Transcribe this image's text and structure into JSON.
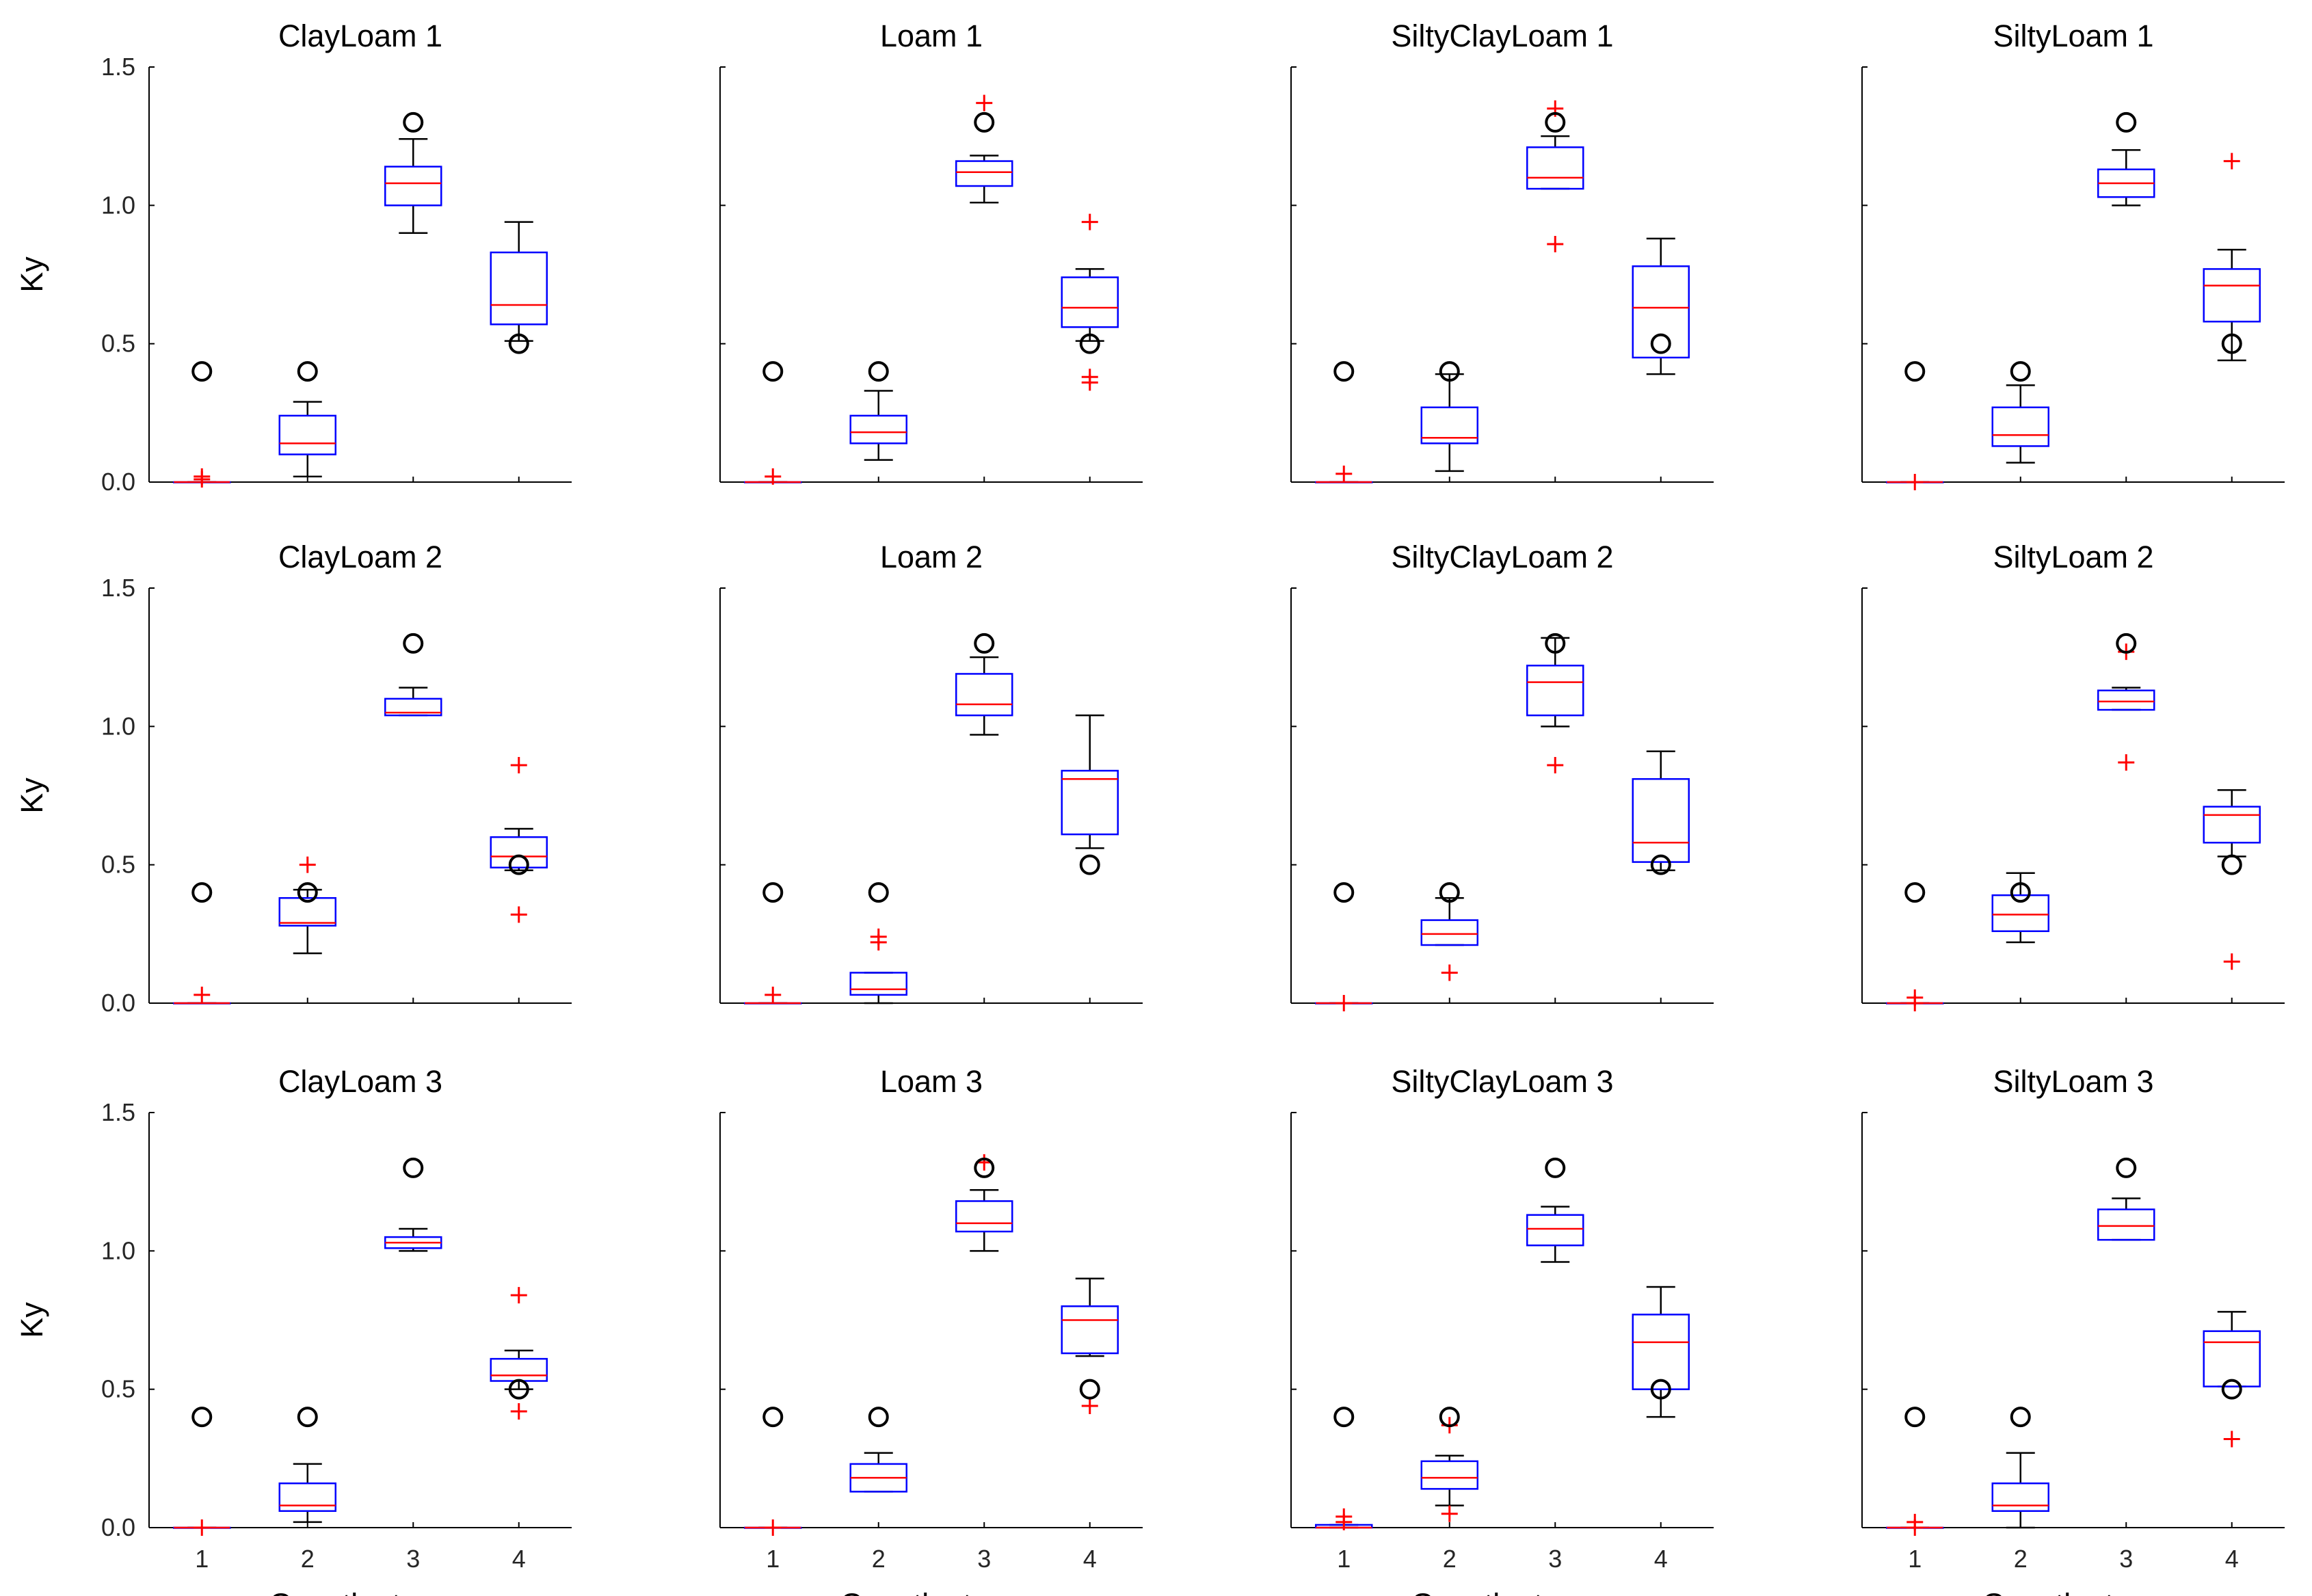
{
  "figure": {
    "ylabel": "Ky",
    "xlabel": "Growth stage",
    "x_ticks": [
      "1",
      "2",
      "3",
      "4"
    ],
    "y_ticks": [
      "0.0",
      "0.5",
      "1.0",
      "1.5"
    ],
    "colors": {
      "box": "#0000ff",
      "median": "#ff0000",
      "whisker": "#000000",
      "outlier": "#ff0000",
      "reference": "#000000"
    }
  },
  "chart_data": [
    {
      "type": "box",
      "title": "ClayLoam 1",
      "ylim": [
        0,
        1.5
      ],
      "stages": [
        {
          "stage": "1",
          "q1": 0,
          "median": 0,
          "q3": 0,
          "lo": 0,
          "hi": 0,
          "outliers": [
            0.01,
            0.02
          ],
          "ref": 0.4
        },
        {
          "stage": "2",
          "q1": 0.1,
          "median": 0.14,
          "q3": 0.24,
          "lo": 0.02,
          "hi": 0.29,
          "outliers": [],
          "ref": 0.4
        },
        {
          "stage": "3",
          "q1": 1.0,
          "median": 1.08,
          "q3": 1.14,
          "lo": 0.9,
          "hi": 1.24,
          "outliers": [],
          "ref": 1.3
        },
        {
          "stage": "4",
          "q1": 0.57,
          "median": 0.64,
          "q3": 0.83,
          "lo": 0.51,
          "hi": 0.94,
          "outliers": [],
          "ref": 0.5
        }
      ]
    },
    {
      "type": "box",
      "title": "Loam 1",
      "ylim": [
        0,
        1.5
      ],
      "stages": [
        {
          "stage": "1",
          "q1": 0,
          "median": 0,
          "q3": 0,
          "lo": 0,
          "hi": 0,
          "outliers": [
            0.02
          ],
          "ref": 0.4
        },
        {
          "stage": "2",
          "q1": 0.14,
          "median": 0.18,
          "q3": 0.24,
          "lo": 0.08,
          "hi": 0.33,
          "outliers": [],
          "ref": 0.4
        },
        {
          "stage": "3",
          "q1": 1.07,
          "median": 1.12,
          "q3": 1.16,
          "lo": 1.01,
          "hi": 1.18,
          "outliers": [
            1.37
          ],
          "ref": 1.3
        },
        {
          "stage": "4",
          "q1": 0.56,
          "median": 0.63,
          "q3": 0.74,
          "lo": 0.51,
          "hi": 0.77,
          "outliers": [
            0.94,
            0.38,
            0.36
          ],
          "ref": 0.5
        }
      ]
    },
    {
      "type": "box",
      "title": "SiltyClayLoam 1",
      "ylim": [
        0,
        1.5
      ],
      "stages": [
        {
          "stage": "1",
          "q1": 0,
          "median": 0,
          "q3": 0,
          "lo": 0,
          "hi": 0,
          "outliers": [
            0.03
          ],
          "ref": 0.4
        },
        {
          "stage": "2",
          "q1": 0.14,
          "median": 0.16,
          "q3": 0.27,
          "lo": 0.04,
          "hi": 0.39,
          "outliers": [],
          "ref": 0.4
        },
        {
          "stage": "3",
          "q1": 1.06,
          "median": 1.1,
          "q3": 1.21,
          "lo": 1.06,
          "hi": 1.25,
          "outliers": [
            1.35,
            0.86
          ],
          "ref": 1.3
        },
        {
          "stage": "4",
          "q1": 0.45,
          "median": 0.63,
          "q3": 0.78,
          "lo": 0.39,
          "hi": 0.88,
          "outliers": [],
          "ref": 0.5
        }
      ]
    },
    {
      "type": "box",
      "title": "SiltyLoam 1",
      "ylim": [
        0,
        1.5
      ],
      "stages": [
        {
          "stage": "1",
          "q1": 0,
          "median": 0,
          "q3": 0,
          "lo": 0,
          "hi": 0,
          "outliers": [
            0.0
          ],
          "ref": 0.4
        },
        {
          "stage": "2",
          "q1": 0.13,
          "median": 0.17,
          "q3": 0.27,
          "lo": 0.07,
          "hi": 0.35,
          "outliers": [],
          "ref": 0.4
        },
        {
          "stage": "3",
          "q1": 1.03,
          "median": 1.08,
          "q3": 1.13,
          "lo": 1.0,
          "hi": 1.2,
          "outliers": [],
          "ref": 1.3
        },
        {
          "stage": "4",
          "q1": 0.58,
          "median": 0.71,
          "q3": 0.77,
          "lo": 0.44,
          "hi": 0.84,
          "outliers": [
            1.16
          ],
          "ref": 0.5
        }
      ]
    },
    {
      "type": "box",
      "title": "ClayLoam 2",
      "ylim": [
        0,
        1.5
      ],
      "stages": [
        {
          "stage": "1",
          "q1": 0,
          "median": 0,
          "q3": 0,
          "lo": 0,
          "hi": 0,
          "outliers": [
            0.03
          ],
          "ref": 0.4
        },
        {
          "stage": "2",
          "q1": 0.28,
          "median": 0.29,
          "q3": 0.38,
          "lo": 0.18,
          "hi": 0.41,
          "outliers": [
            0.5
          ],
          "ref": 0.4
        },
        {
          "stage": "3",
          "q1": 1.04,
          "median": 1.05,
          "q3": 1.1,
          "lo": 1.04,
          "hi": 1.14,
          "outliers": [],
          "ref": 1.3
        },
        {
          "stage": "4",
          "q1": 0.49,
          "median": 0.53,
          "q3": 0.6,
          "lo": 0.48,
          "hi": 0.63,
          "outliers": [
            0.86,
            0.32
          ],
          "ref": 0.5
        }
      ]
    },
    {
      "type": "box",
      "title": "Loam 2",
      "ylim": [
        0,
        1.5
      ],
      "stages": [
        {
          "stage": "1",
          "q1": 0,
          "median": 0,
          "q3": 0,
          "lo": 0,
          "hi": 0,
          "outliers": [
            0.03
          ],
          "ref": 0.4
        },
        {
          "stage": "2",
          "q1": 0.03,
          "median": 0.05,
          "q3": 0.11,
          "lo": 0.0,
          "hi": 0.11,
          "outliers": [
            0.24,
            0.22
          ],
          "ref": 0.4
        },
        {
          "stage": "3",
          "q1": 1.04,
          "median": 1.08,
          "q3": 1.19,
          "lo": 0.97,
          "hi": 1.25,
          "outliers": [],
          "ref": 1.3
        },
        {
          "stage": "4",
          "q1": 0.61,
          "median": 0.81,
          "q3": 0.84,
          "lo": 0.56,
          "hi": 1.04,
          "outliers": [],
          "ref": 0.5
        }
      ]
    },
    {
      "type": "box",
      "title": "SiltyClayLoam 2",
      "ylim": [
        0,
        1.5
      ],
      "stages": [
        {
          "stage": "1",
          "q1": 0,
          "median": 0,
          "q3": 0,
          "lo": 0,
          "hi": 0,
          "outliers": [
            0.0
          ],
          "ref": 0.4
        },
        {
          "stage": "2",
          "q1": 0.21,
          "median": 0.25,
          "q3": 0.3,
          "lo": 0.21,
          "hi": 0.38,
          "outliers": [
            0.11
          ],
          "ref": 0.4
        },
        {
          "stage": "3",
          "q1": 1.04,
          "median": 1.16,
          "q3": 1.22,
          "lo": 1.0,
          "hi": 1.32,
          "outliers": [
            0.86
          ],
          "ref": 1.3
        },
        {
          "stage": "4",
          "q1": 0.51,
          "median": 0.58,
          "q3": 0.81,
          "lo": 0.48,
          "hi": 0.91,
          "outliers": [],
          "ref": 0.5
        }
      ]
    },
    {
      "type": "box",
      "title": "SiltyLoam 2",
      "ylim": [
        0,
        1.5
      ],
      "stages": [
        {
          "stage": "1",
          "q1": 0,
          "median": 0,
          "q3": 0,
          "lo": 0,
          "hi": 0,
          "outliers": [
            0.02,
            0.0
          ],
          "ref": 0.4
        },
        {
          "stage": "2",
          "q1": 0.26,
          "median": 0.32,
          "q3": 0.39,
          "lo": 0.22,
          "hi": 0.47,
          "outliers": [],
          "ref": 0.4
        },
        {
          "stage": "3",
          "q1": 1.06,
          "median": 1.09,
          "q3": 1.13,
          "lo": 1.06,
          "hi": 1.14,
          "outliers": [
            1.27,
            0.87
          ],
          "ref": 1.3
        },
        {
          "stage": "4",
          "q1": 0.58,
          "median": 0.68,
          "q3": 0.71,
          "lo": 0.53,
          "hi": 0.77,
          "outliers": [
            0.15
          ],
          "ref": 0.5
        }
      ]
    },
    {
      "type": "box",
      "title": "ClayLoam 3",
      "ylim": [
        0,
        1.5
      ],
      "stages": [
        {
          "stage": "1",
          "q1": 0,
          "median": 0,
          "q3": 0,
          "lo": 0,
          "hi": 0,
          "outliers": [
            0.0
          ],
          "ref": 0.4
        },
        {
          "stage": "2",
          "q1": 0.06,
          "median": 0.08,
          "q3": 0.16,
          "lo": 0.02,
          "hi": 0.23,
          "outliers": [],
          "ref": 0.4
        },
        {
          "stage": "3",
          "q1": 1.01,
          "median": 1.03,
          "q3": 1.05,
          "lo": 1.0,
          "hi": 1.08,
          "outliers": [],
          "ref": 1.3
        },
        {
          "stage": "4",
          "q1": 0.53,
          "median": 0.55,
          "q3": 0.61,
          "lo": 0.5,
          "hi": 0.64,
          "outliers": [
            0.84,
            0.42
          ],
          "ref": 0.5
        }
      ]
    },
    {
      "type": "box",
      "title": "Loam 3",
      "ylim": [
        0,
        1.5
      ],
      "stages": [
        {
          "stage": "1",
          "q1": 0,
          "median": 0,
          "q3": 0,
          "lo": 0,
          "hi": 0,
          "outliers": [
            0.0
          ],
          "ref": 0.4
        },
        {
          "stage": "2",
          "q1": 0.13,
          "median": 0.18,
          "q3": 0.23,
          "lo": 0.13,
          "hi": 0.27,
          "outliers": [],
          "ref": 0.4
        },
        {
          "stage": "3",
          "q1": 1.07,
          "median": 1.1,
          "q3": 1.18,
          "lo": 1.0,
          "hi": 1.22,
          "outliers": [
            1.32
          ],
          "ref": 1.3
        },
        {
          "stage": "4",
          "q1": 0.63,
          "median": 0.75,
          "q3": 0.8,
          "lo": 0.62,
          "hi": 0.9,
          "outliers": [
            0.44
          ],
          "ref": 0.5
        }
      ]
    },
    {
      "type": "box",
      "title": "SiltyClayLoam 3",
      "ylim": [
        0,
        1.5
      ],
      "stages": [
        {
          "stage": "1",
          "q1": 0,
          "median": 0,
          "q3": 0.01,
          "lo": 0,
          "hi": 0.01,
          "outliers": [
            0.04,
            0.02
          ],
          "ref": 0.4
        },
        {
          "stage": "2",
          "q1": 0.14,
          "median": 0.18,
          "q3": 0.24,
          "lo": 0.08,
          "hi": 0.26,
          "outliers": [
            0.37,
            0.05
          ],
          "ref": 0.4
        },
        {
          "stage": "3",
          "q1": 1.02,
          "median": 1.08,
          "q3": 1.13,
          "lo": 0.96,
          "hi": 1.16,
          "outliers": [],
          "ref": 1.3
        },
        {
          "stage": "4",
          "q1": 0.5,
          "median": 0.67,
          "q3": 0.77,
          "lo": 0.4,
          "hi": 0.87,
          "outliers": [],
          "ref": 0.5
        }
      ]
    },
    {
      "type": "box",
      "title": "SiltyLoam 3",
      "ylim": [
        0,
        1.5
      ],
      "stages": [
        {
          "stage": "1",
          "q1": 0,
          "median": 0,
          "q3": 0,
          "lo": 0,
          "hi": 0,
          "outliers": [
            0.02,
            0.0
          ],
          "ref": 0.4
        },
        {
          "stage": "2",
          "q1": 0.06,
          "median": 0.08,
          "q3": 0.16,
          "lo": 0.0,
          "hi": 0.27,
          "outliers": [],
          "ref": 0.4
        },
        {
          "stage": "3",
          "q1": 1.04,
          "median": 1.09,
          "q3": 1.15,
          "lo": 1.04,
          "hi": 1.19,
          "outliers": [],
          "ref": 1.3
        },
        {
          "stage": "4",
          "q1": 0.51,
          "median": 0.67,
          "q3": 0.71,
          "lo": 0.51,
          "hi": 0.78,
          "outliers": [
            0.32
          ],
          "ref": 0.5
        }
      ]
    }
  ]
}
